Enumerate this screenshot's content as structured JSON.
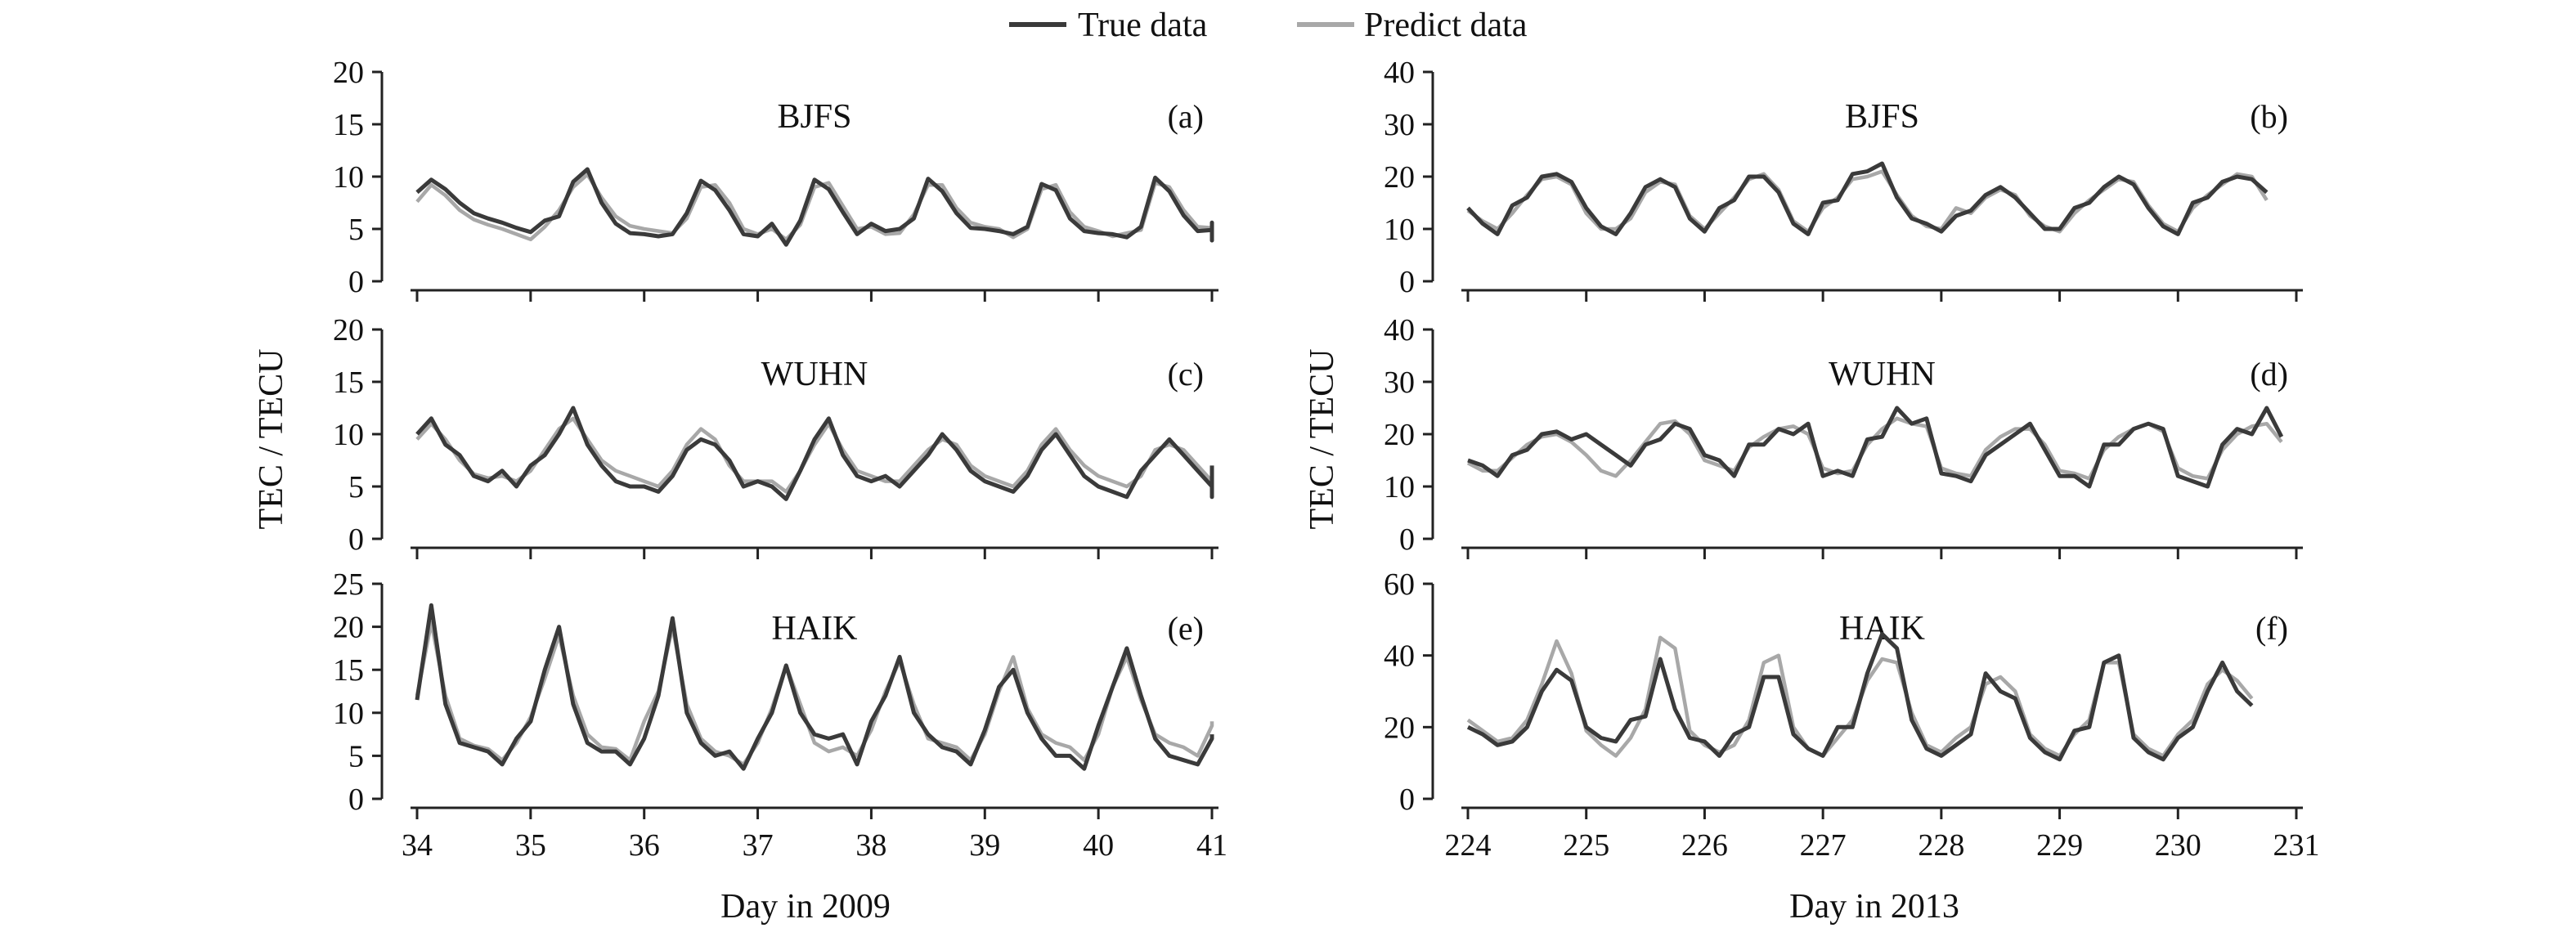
{
  "legend": {
    "entries": [
      {
        "label": "True data",
        "color": "#3a3a3a"
      },
      {
        "label": "Predict data",
        "color": "#a8a8a8"
      }
    ]
  },
  "colors": {
    "true": "#3a3a3a",
    "predict": "#a8a8a8",
    "axis": "#222222"
  },
  "y_axis_titles": {
    "left": "TEC / TECU",
    "right": "TEC / TECU"
  },
  "x_axis_titles": {
    "left": "Day in 2009",
    "right": "Day in 2013"
  },
  "chart_data": [
    {
      "type": "line",
      "id": "a",
      "title": "BJFS",
      "letter": "(a)",
      "xlim": [
        34,
        41
      ],
      "ylim": [
        0,
        20
      ],
      "yticks": [
        0,
        5,
        10,
        15,
        20
      ],
      "xticks": [],
      "x_start": 34,
      "x_step": 0.125,
      "series": [
        {
          "name": "True data",
          "values": [
            8.5,
            9.7,
            8.8,
            7.5,
            6.5,
            6.0,
            5.6,
            5.1,
            4.7,
            5.8,
            6.2,
            9.5,
            10.7,
            7.5,
            5.5,
            4.6,
            4.5,
            4.3,
            4.5,
            6.5,
            9.6,
            8.7,
            6.8,
            4.5,
            4.3,
            5.5,
            3.5,
            5.8,
            9.7,
            8.8,
            6.6,
            4.5,
            5.5,
            4.8,
            5.0,
            6.0,
            9.8,
            8.6,
            6.5,
            5.1,
            5.0,
            4.8,
            4.5,
            5.2,
            9.3,
            8.7,
            6.0,
            4.8,
            4.6,
            4.5,
            4.2,
            5.2,
            9.9,
            8.6,
            6.3,
            4.8,
            4.9,
            5.2,
            3.9,
            5.6,
            5.5
          ]
        },
        {
          "name": "Predict data",
          "values": [
            7.6,
            9.2,
            8.2,
            6.8,
            5.9,
            5.4,
            5.0,
            4.5,
            4.0,
            5.2,
            6.8,
            9.0,
            10.2,
            8.0,
            6.2,
            5.3,
            5.0,
            4.8,
            4.6,
            6.0,
            9.0,
            9.2,
            7.5,
            5.0,
            4.5,
            5.0,
            4.0,
            5.4,
            9.0,
            9.4,
            7.2,
            5.0,
            5.2,
            4.5,
            4.6,
            6.4,
            9.2,
            9.2,
            7.0,
            5.6,
            5.2,
            5.0,
            4.2,
            5.0,
            8.8,
            9.2,
            6.6,
            5.2,
            4.8,
            4.3,
            4.6,
            4.9,
            9.4,
            9.0,
            6.8,
            5.2,
            5.1,
            5.0,
            4.3,
            5.2,
            5.6
          ]
        }
      ]
    },
    {
      "type": "line",
      "id": "b",
      "title": "BJFS",
      "letter": "(b)",
      "xlim": [
        224,
        231
      ],
      "ylim": [
        0,
        40
      ],
      "yticks": [
        0,
        10,
        20,
        30,
        40
      ],
      "xticks": [],
      "x_start": 224,
      "x_step": 0.125,
      "series": [
        {
          "name": "True data",
          "values": [
            14.0,
            11.0,
            9.0,
            14.5,
            16.0,
            20.0,
            20.5,
            19.0,
            14.0,
            10.5,
            9.0,
            13.0,
            18.0,
            19.5,
            18.0,
            12.0,
            9.5,
            14.0,
            15.5,
            20.0,
            20.0,
            17.0,
            11.0,
            9.0,
            15.0,
            15.5,
            20.5,
            21.0,
            22.5,
            16.0,
            12.0,
            11.0,
            9.5,
            12.5,
            13.5,
            16.5,
            18.0,
            16.0,
            13.0,
            10.0,
            10.0,
            14.0,
            15.0,
            18.0,
            20.0,
            18.5,
            14.0,
            10.5,
            9.0,
            15.0,
            16.0,
            19.0,
            20.0,
            19.5,
            17.0
          ]
        },
        {
          "name": "Predict data",
          "values": [
            13.5,
            11.5,
            10.0,
            13.0,
            16.5,
            19.5,
            20.0,
            18.5,
            13.0,
            10.0,
            10.0,
            12.0,
            17.0,
            19.0,
            18.5,
            12.5,
            10.0,
            13.0,
            16.0,
            19.5,
            20.5,
            17.5,
            11.5,
            9.5,
            14.0,
            16.0,
            19.5,
            20.0,
            21.0,
            16.5,
            12.5,
            10.5,
            10.0,
            14.0,
            13.0,
            16.0,
            17.5,
            16.5,
            12.5,
            10.5,
            9.5,
            13.0,
            15.5,
            17.5,
            19.5,
            19.0,
            14.5,
            11.0,
            9.5,
            14.0,
            16.5,
            18.5,
            20.5,
            20.0,
            15.5
          ]
        }
      ]
    },
    {
      "type": "line",
      "id": "c",
      "title": "WUHN",
      "letter": "(c)",
      "xlim": [
        34,
        41
      ],
      "ylim": [
        0,
        20
      ],
      "yticks": [
        0,
        5,
        10,
        15,
        20
      ],
      "xticks": [],
      "x_start": 34,
      "x_step": 0.125,
      "series": [
        {
          "name": "True data",
          "values": [
            10.0,
            11.5,
            9.0,
            8.0,
            6.0,
            5.5,
            6.5,
            5.0,
            7.0,
            8.0,
            10.0,
            12.5,
            9.0,
            7.0,
            5.5,
            5.0,
            5.0,
            4.5,
            6.0,
            8.5,
            9.5,
            9.0,
            7.5,
            5.0,
            5.5,
            5.0,
            3.8,
            6.5,
            9.5,
            11.5,
            8.0,
            6.0,
            5.5,
            6.0,
            5.0,
            6.5,
            8.0,
            10.0,
            8.5,
            6.5,
            5.5,
            5.0,
            4.5,
            6.0,
            8.5,
            10.0,
            8.0,
            6.0,
            5.0,
            4.5,
            4.0,
            6.5,
            8.0,
            9.5,
            8.0,
            6.5,
            5.0,
            5.0,
            4.0,
            6.5,
            7.0
          ]
        },
        {
          "name": "Predict data",
          "values": [
            9.5,
            11.0,
            9.5,
            7.5,
            6.2,
            5.8,
            6.0,
            5.5,
            6.5,
            8.5,
            10.5,
            11.5,
            9.5,
            7.5,
            6.5,
            6.0,
            5.5,
            5.0,
            6.5,
            9.0,
            10.5,
            9.5,
            7.0,
            5.5,
            5.5,
            5.5,
            4.5,
            6.5,
            9.0,
            11.0,
            8.5,
            6.5,
            6.0,
            5.5,
            5.5,
            7.0,
            8.5,
            9.5,
            9.0,
            7.0,
            6.0,
            5.5,
            5.0,
            6.5,
            9.0,
            10.5,
            8.5,
            7.0,
            6.0,
            5.5,
            5.0,
            6.0,
            8.5,
            9.0,
            8.5,
            7.0,
            5.5,
            5.0,
            4.8,
            6.0,
            6.5
          ]
        }
      ]
    },
    {
      "type": "line",
      "id": "d",
      "title": "WUHN",
      "letter": "(d)",
      "xlim": [
        224,
        231
      ],
      "ylim": [
        0,
        40
      ],
      "yticks": [
        0,
        10,
        20,
        30,
        40
      ],
      "xticks": [],
      "x_start": 224,
      "x_step": 0.125,
      "series": [
        {
          "name": "True data",
          "values": [
            15.0,
            14.0,
            12.0,
            16.0,
            17.0,
            20.0,
            20.5,
            19.0,
            20.0,
            18.0,
            16.0,
            14.0,
            18.0,
            19.0,
            22.0,
            21.0,
            16.0,
            15.0,
            12.0,
            18.0,
            18.0,
            21.0,
            20.0,
            22.0,
            12.0,
            13.0,
            12.0,
            19.0,
            19.5,
            25.0,
            22.0,
            23.0,
            12.5,
            12.0,
            11.0,
            16.0,
            18.0,
            20.0,
            22.0,
            17.0,
            12.0,
            12.0,
            10.0,
            18.0,
            18.0,
            21.0,
            22.0,
            21.0,
            12.0,
            11.0,
            10.0,
            18.0,
            21.0,
            20.0,
            25.0,
            19.5
          ]
        },
        {
          "name": "Predict data",
          "values": [
            14.5,
            13.0,
            13.0,
            15.5,
            18.0,
            19.5,
            20.0,
            18.5,
            16.0,
            13.0,
            12.0,
            15.0,
            18.5,
            22.0,
            22.5,
            20.0,
            15.0,
            14.0,
            13.0,
            17.5,
            19.5,
            21.0,
            21.5,
            20.0,
            13.5,
            12.5,
            13.0,
            18.0,
            21.0,
            23.0,
            22.0,
            21.5,
            13.5,
            12.5,
            12.0,
            17.0,
            19.5,
            21.0,
            21.0,
            18.0,
            13.0,
            12.5,
            11.5,
            17.0,
            19.5,
            21.0,
            22.0,
            20.5,
            13.5,
            12.0,
            11.5,
            17.0,
            20.0,
            21.5,
            22.0,
            18.5
          ]
        }
      ]
    },
    {
      "type": "line",
      "id": "e",
      "title": "HAIK",
      "letter": "(e)",
      "xlim": [
        34,
        41
      ],
      "ylim": [
        0,
        25
      ],
      "yticks": [
        0,
        5,
        10,
        15,
        20,
        25
      ],
      "xticks": [
        34,
        35,
        36,
        37,
        38,
        39,
        40,
        41
      ],
      "x_start": 34,
      "x_step": 0.125,
      "series": [
        {
          "name": "True data",
          "values": [
            11.5,
            22.5,
            11.0,
            6.5,
            6.0,
            5.5,
            4.0,
            7.0,
            9.0,
            15.0,
            20.0,
            11.0,
            6.5,
            5.5,
            5.5,
            4.0,
            7.0,
            12.0,
            21.0,
            10.0,
            6.5,
            5.0,
            5.5,
            3.5,
            7.0,
            10.0,
            15.5,
            10.0,
            7.5,
            7.0,
            7.5,
            4.0,
            9.0,
            12.0,
            16.5,
            10.0,
            7.5,
            6.0,
            5.5,
            4.0,
            8.0,
            13.0,
            15.0,
            10.0,
            7.0,
            5.0,
            5.0,
            3.5,
            8.5,
            13.0,
            17.5,
            12.0,
            7.0,
            5.0,
            4.5,
            4.0,
            7.0,
            7.5
          ]
        },
        {
          "name": "Predict data",
          "values": [
            12.0,
            20.5,
            12.0,
            7.0,
            6.2,
            5.8,
            4.5,
            6.5,
            9.5,
            14.0,
            19.0,
            12.0,
            7.5,
            6.0,
            5.8,
            4.5,
            9.0,
            12.5,
            20.0,
            11.0,
            7.0,
            5.5,
            5.0,
            4.0,
            6.5,
            10.5,
            15.5,
            11.0,
            6.5,
            5.5,
            6.0,
            5.0,
            8.0,
            12.5,
            16.0,
            11.0,
            7.0,
            6.5,
            6.0,
            4.5,
            7.5,
            12.5,
            16.5,
            10.5,
            7.5,
            6.5,
            6.0,
            4.5,
            7.5,
            13.0,
            16.5,
            11.5,
            7.5,
            6.5,
            6.0,
            5.0,
            8.5,
            9.0
          ]
        }
      ]
    },
    {
      "type": "line",
      "id": "f",
      "title": "HAIK",
      "letter": "(f)",
      "xlim": [
        224,
        231
      ],
      "ylim": [
        0,
        60
      ],
      "yticks": [
        0,
        20,
        40,
        60
      ],
      "xticks": [
        224,
        225,
        226,
        227,
        228,
        229,
        230,
        231
      ],
      "x_start": 224,
      "x_step": 0.125,
      "series": [
        {
          "name": "True data",
          "values": [
            20.0,
            18.0,
            15.0,
            16.0,
            20.0,
            30.0,
            36.0,
            33.0,
            20.0,
            17.0,
            16.0,
            22.0,
            23.0,
            39.0,
            25.0,
            17.0,
            16.0,
            12.0,
            18.0,
            20.0,
            34.0,
            34.0,
            18.0,
            14.0,
            12.0,
            20.0,
            20.0,
            35.0,
            46.0,
            42.0,
            22.0,
            14.0,
            12.0,
            15.0,
            18.0,
            35.0,
            30.0,
            28.0,
            17.0,
            13.0,
            11.0,
            19.0,
            20.0,
            38.0,
            40.0,
            17.0,
            13.0,
            11.0,
            17.0,
            20.0,
            30.0,
            38.0,
            30.0,
            26.0
          ]
        },
        {
          "name": "Predict data",
          "values": [
            22.0,
            19.0,
            16.0,
            17.0,
            22.0,
            32.0,
            44.0,
            35.0,
            19.0,
            15.0,
            12.0,
            17.0,
            25.0,
            45.0,
            42.0,
            19.0,
            15.0,
            13.0,
            15.0,
            22.0,
            38.0,
            40.0,
            20.0,
            14.0,
            12.0,
            17.0,
            22.0,
            33.0,
            39.0,
            38.0,
            24.0,
            15.0,
            13.0,
            17.0,
            20.0,
            32.0,
            34.0,
            30.0,
            18.0,
            14.0,
            12.0,
            18.0,
            22.0,
            38.0,
            38.0,
            18.0,
            14.0,
            12.0,
            18.0,
            22.0,
            32.0,
            36.0,
            33.0,
            28.0
          ]
        }
      ]
    }
  ]
}
